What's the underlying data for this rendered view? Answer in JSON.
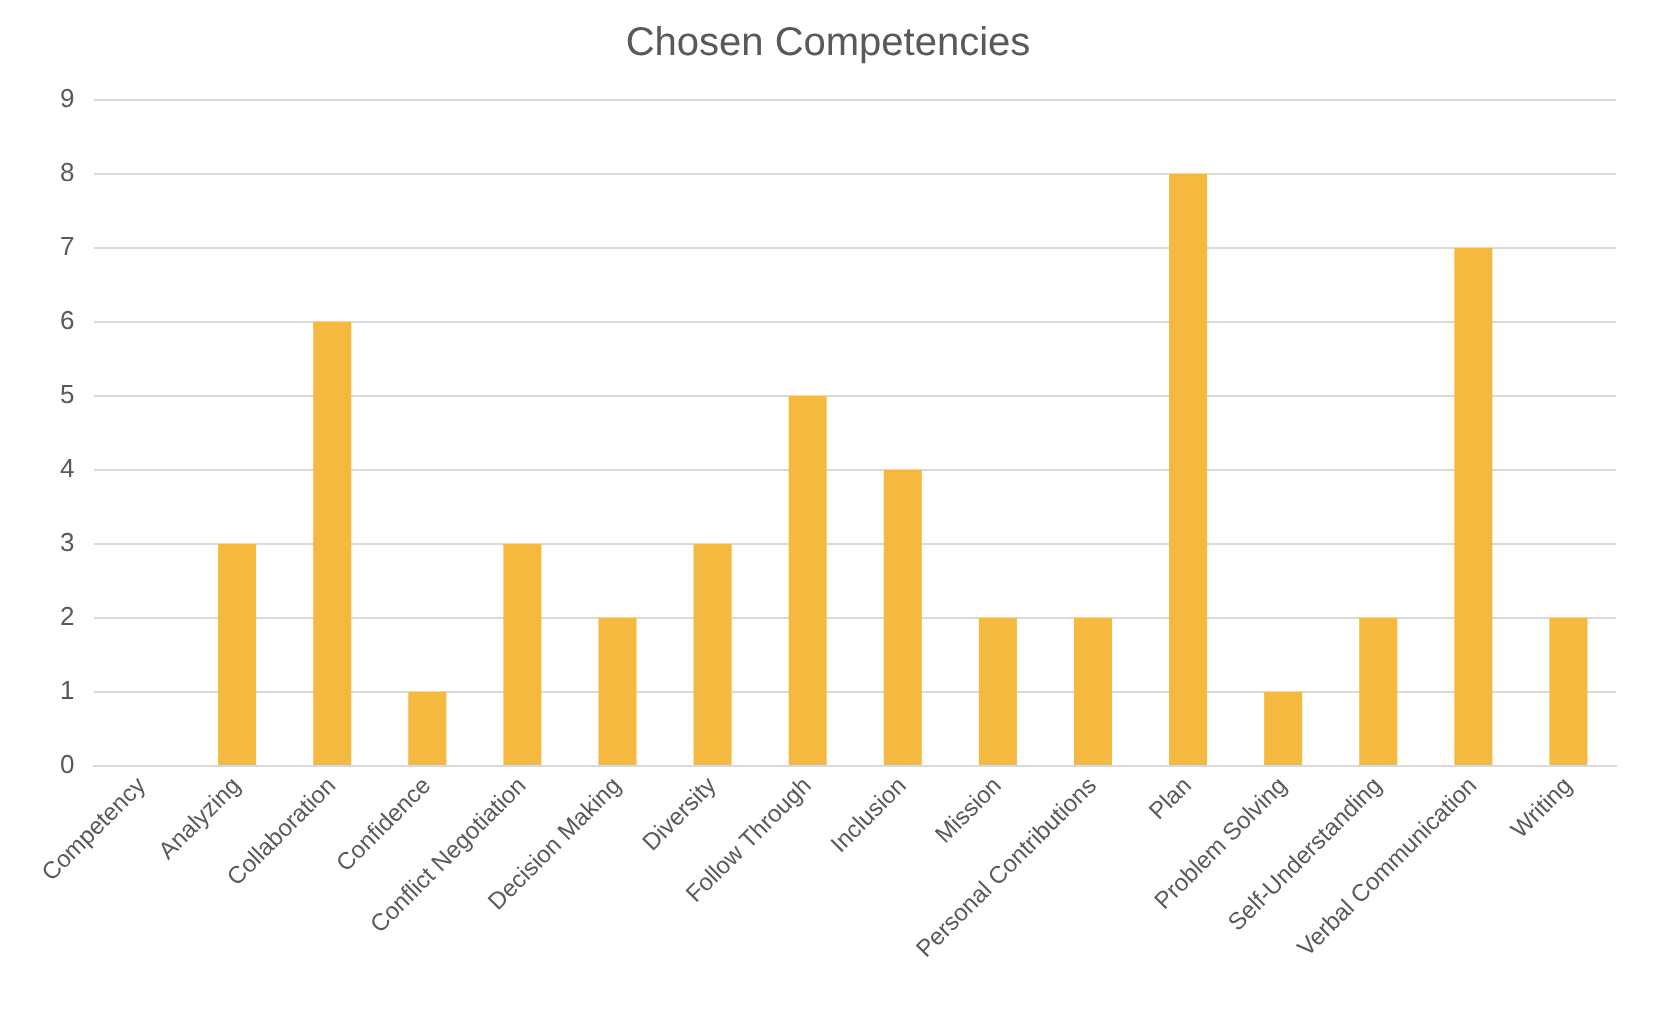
{
  "chart_data": {
    "type": "bar",
    "title": "Chosen Competencies",
    "categories": [
      "Competency",
      "Analyzing",
      "Collaboration",
      "Confidence",
      "Conflict Negotiation",
      "Decision Making",
      "Diversity",
      "Follow Through",
      "Inclusion",
      "Mission",
      "Personal Contributions",
      "Plan",
      "Problem Solving",
      "Self-Understanding",
      "Verbal Communication",
      "Writing"
    ],
    "values": [
      null,
      3,
      6,
      1,
      3,
      2,
      3,
      5,
      4,
      2,
      2,
      8,
      1,
      2,
      7,
      2
    ],
    "color": "#f5b940",
    "ylim": [
      0,
      9
    ],
    "yticks": [
      0,
      1,
      2,
      3,
      4,
      5,
      6,
      7,
      8,
      9
    ],
    "grid": "y"
  }
}
